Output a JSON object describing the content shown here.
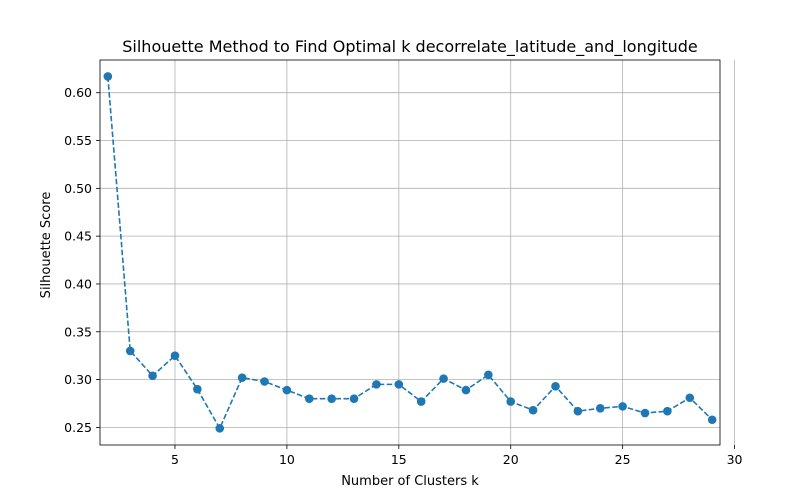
{
  "chart_data": {
    "type": "line",
    "title": "Silhouette Method to Find Optimal k decorrelate_latitude_and_longitude",
    "xlabel": "Number of Clusters k",
    "ylabel": "Silhouette Score",
    "xlim": [
      1.65,
      29.35
    ],
    "ylim": [
      0.2316,
      0.6342
    ],
    "xticks": [
      5,
      10,
      15,
      20,
      25,
      30
    ],
    "xtick_labels": [
      "5",
      "10",
      "15",
      "20",
      "25",
      "30"
    ],
    "yticks": [
      0.25,
      0.3,
      0.35,
      0.4,
      0.45,
      0.5,
      0.55,
      0.6
    ],
    "ytick_labels": [
      "0.25",
      "0.30",
      "0.35",
      "0.40",
      "0.45",
      "0.50",
      "0.55",
      "0.60"
    ],
    "grid": true,
    "line_style": "dashed",
    "marker": "circle",
    "color": "#1f77b4",
    "series": [
      {
        "x": [
          2,
          3,
          4,
          5,
          6,
          7,
          8,
          9,
          10,
          11,
          12,
          13,
          14,
          15,
          16,
          17,
          18,
          19,
          20,
          21,
          22,
          23,
          24,
          25,
          26,
          27,
          28,
          29
        ],
        "values": [
          0.617,
          0.33,
          0.304,
          0.325,
          0.29,
          0.249,
          0.302,
          0.298,
          0.289,
          0.28,
          0.28,
          0.28,
          0.295,
          0.295,
          0.277,
          0.301,
          0.289,
          0.305,
          0.277,
          0.268,
          0.293,
          0.267,
          0.27,
          0.272,
          0.265,
          0.267,
          0.281,
          0.258
        ]
      }
    ]
  }
}
